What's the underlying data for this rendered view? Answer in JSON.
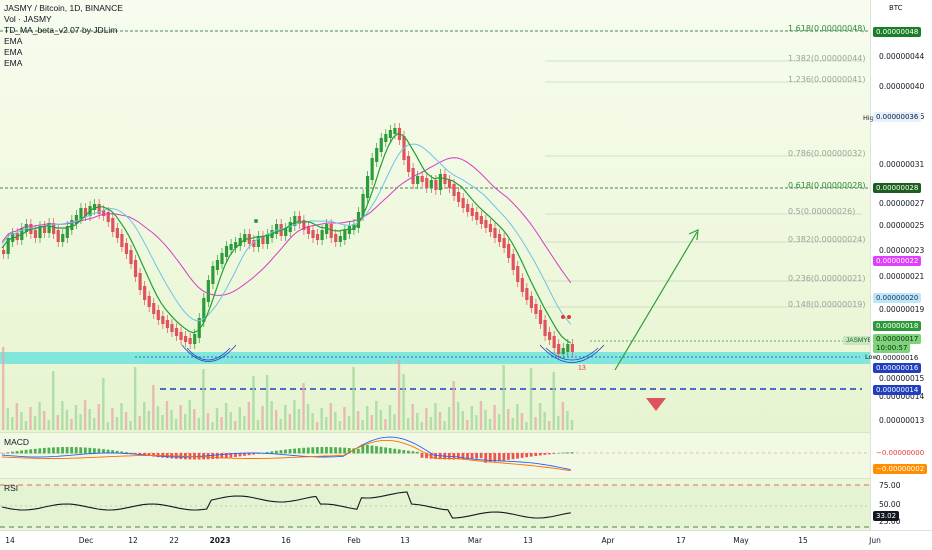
{
  "legend": {
    "title": "JASMY / Bitcoin, 1D, BINANCE",
    "volume": "Vol · JASMY",
    "indicator": "TD_MA_beta_v2.07 by JDLim",
    "ema1": "EMA",
    "ema2": "EMA",
    "ema3": "EMA"
  },
  "panes": {
    "macd_label": "MACD",
    "rsi_label": "RSI"
  },
  "price_axis": {
    "currency": "BTC",
    "ticks": [
      "0.00000044",
      "0.00000040",
      "0.00000036",
      "0.00000031",
      "0.00000027",
      "0.00000025",
      "0.00000023",
      "0.00000021",
      "0.00000019",
      "0.00000015",
      "0.00000014",
      "0.00000013"
    ],
    "badges": [
      {
        "text": "0.00000048",
        "bg": "#1b7f2a",
        "fg": "#ffffff"
      },
      {
        "text": "0.00000028",
        "bg": "#1b5e20",
        "fg": "#ffffff"
      },
      {
        "text": "0.00000022",
        "bg": "#e040fb",
        "fg": "#ffffff"
      },
      {
        "text": "0.00000020",
        "bg": "#bfe6f7",
        "fg": "#0d3c61"
      },
      {
        "text": "0.00000018",
        "bg": "#2e9b3a",
        "fg": "#ffffff"
      },
      {
        "text": "0.00000017",
        "bg": "#7ed37a",
        "fg": "#0a2f0a"
      },
      {
        "text": "10:00:57",
        "bg": "#7ed37a",
        "fg": "#0a2f0a"
      },
      {
        "text": "0.00000016",
        "bg": "#ffffff",
        "fg": "#131722"
      },
      {
        "text": "0.00000016",
        "bg": "#1f3fbf",
        "fg": "#ffffff"
      },
      {
        "text": "0.00000014",
        "bg": "#1f3fbf",
        "fg": "#ffffff"
      }
    ],
    "high_label": "High",
    "high_value": "0.00000036",
    "low_label": "Low",
    "macd_badges": [
      {
        "text": "−0.00000000",
        "bg": "#ffffff",
        "fg": "#e53935"
      },
      {
        "text": "−0.00000002",
        "bg": "#ff8f00",
        "fg": "#ffffff"
      }
    ],
    "rsi_ticks": [
      "75.00",
      "50.00",
      "25.00"
    ],
    "rsi_badge": {
      "text": "33.02",
      "bg": "#131722",
      "fg": "#ffffff"
    }
  },
  "symbol_tag": "JASMYBTC",
  "fib_levels": [
    {
      "label": "1.618(0.00000048)",
      "green": true
    },
    {
      "label": "1.382(0.00000044)",
      "green": false
    },
    {
      "label": "1.236(0.00000041)",
      "green": false
    },
    {
      "label": "0.786(0.00000032)",
      "green": false
    },
    {
      "label": "0.618(0.00000028)",
      "green": true
    },
    {
      "label": "0.5(0.00000026)",
      "green": false
    },
    {
      "label": "0.382(0.00000024)",
      "green": false
    },
    {
      "label": "0.236(0.00000021)",
      "green": false
    },
    {
      "label": "0.148(0.00000019)",
      "green": false
    }
  ],
  "annotations": {
    "td_count_label": "13"
  },
  "time_axis": [
    "14",
    "Dec",
    "12",
    "22",
    "2023",
    "16",
    "Feb",
    "13",
    "Mar",
    "13",
    "Apr",
    "17",
    "May",
    "15",
    "Jun"
  ],
  "colors": {
    "up": "#2e9b3a",
    "down": "#e0525c",
    "ema_pink": "#d63cc7",
    "ema_blue": "#6fc3e6",
    "support_zone": "#6fe3dc",
    "arrow": "#2ca03a",
    "target_line": "#1f3fbf"
  }
}
